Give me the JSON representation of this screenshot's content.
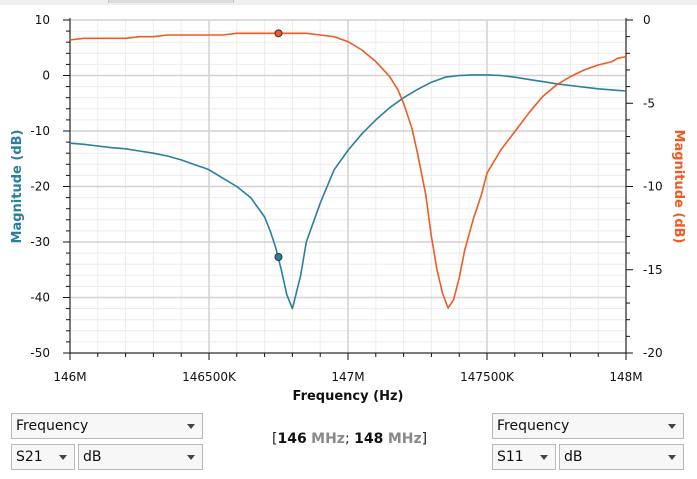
{
  "chart_data": {
    "type": "line",
    "xlabel": "Frequency (Hz)",
    "ylabel_left": "Magnitude (dB)",
    "ylabel_right": "Magnitude (dB)",
    "xlim": [
      146000000,
      148000000
    ],
    "ylim_left": [
      -50,
      10
    ],
    "ylim_right": [
      -20,
      0
    ],
    "x_ticks": [
      146000000,
      146500000,
      147000000,
      147500000,
      148000000
    ],
    "x_tick_labels": [
      "146M",
      "146500K",
      "147M",
      "147500K",
      "148M"
    ],
    "y_ticks_left": [
      10,
      0,
      -10,
      -20,
      -30,
      -40,
      -50
    ],
    "y_tick_labels_left": [
      "10",
      "0",
      "-10",
      "-20",
      "-30",
      "-40",
      "-50"
    ],
    "y_ticks_right": [
      0,
      -5,
      -10,
      -15,
      -20
    ],
    "y_tick_labels_right": [
      "0",
      "-5",
      "-10",
      "-15",
      "-20"
    ],
    "grid": true,
    "series": [
      {
        "axis": "left",
        "color": "#2a7f9e",
        "marker": {
          "x": 146750000,
          "y": -32.7
        },
        "x": [
          146000000,
          146050000,
          146100000,
          146150000,
          146200000,
          146250000,
          146300000,
          146350000,
          146400000,
          146450000,
          146480000,
          146500000,
          146550000,
          146600000,
          146650000,
          146700000,
          146720000,
          146740000,
          146760000,
          146780000,
          146800000,
          146830000,
          146850000,
          146900000,
          146950000,
          147000000,
          147050000,
          147100000,
          147150000,
          147200000,
          147250000,
          147300000,
          147350000,
          147400000,
          147450000,
          147500000,
          147550000,
          147600000,
          147650000,
          147700000,
          147750000,
          147800000,
          147850000,
          147900000,
          147950000,
          148000000
        ],
        "values": [
          -12.2,
          -12.4,
          -12.7,
          -13.0,
          -13.2,
          -13.6,
          -14.0,
          -14.5,
          -15.2,
          -16.1,
          -16.6,
          -17.0,
          -18.5,
          -20.0,
          -22.0,
          -25.5,
          -28.0,
          -31.0,
          -35.0,
          -39.5,
          -42.0,
          -36.0,
          -30.0,
          -23.0,
          -17.0,
          -13.5,
          -10.5,
          -8.0,
          -5.8,
          -4.0,
          -2.5,
          -1.2,
          -0.3,
          0.0,
          0.1,
          0.1,
          0.0,
          -0.3,
          -0.7,
          -1.1,
          -1.5,
          -1.8,
          -2.1,
          -2.4,
          -2.6,
          -2.8
        ]
      },
      {
        "axis": "right",
        "color": "#f05a24",
        "marker": {
          "x": 146750000,
          "y": -0.8
        },
        "x": [
          146000000,
          146050000,
          146100000,
          146150000,
          146200000,
          146250000,
          146300000,
          146350000,
          146400000,
          146450000,
          146500000,
          146550000,
          146600000,
          146650000,
          146700000,
          146750000,
          146800000,
          146850000,
          146900000,
          146950000,
          147000000,
          147050000,
          147100000,
          147150000,
          147180000,
          147200000,
          147230000,
          147250000,
          147280000,
          147300000,
          147320000,
          147340000,
          147360000,
          147380000,
          147400000,
          147420000,
          147450000,
          147480000,
          147500000,
          147550000,
          147600000,
          147650000,
          147700000,
          147750000,
          147800000,
          147850000,
          147900000,
          147950000,
          147970000,
          148000000
        ],
        "values": [
          -1.2,
          -1.1,
          -1.1,
          -1.1,
          -1.1,
          -1.0,
          -1.0,
          -0.9,
          -0.9,
          -0.9,
          -0.9,
          -0.9,
          -0.8,
          -0.8,
          -0.8,
          -0.8,
          -0.8,
          -0.8,
          -0.9,
          -1.0,
          -1.3,
          -1.8,
          -2.5,
          -3.4,
          -4.2,
          -5.0,
          -6.5,
          -8.0,
          -10.5,
          -13.0,
          -15.0,
          -16.4,
          -17.3,
          -16.8,
          -15.5,
          -13.8,
          -12.0,
          -10.5,
          -9.2,
          -7.8,
          -6.7,
          -5.6,
          -4.6,
          -3.9,
          -3.4,
          -3.0,
          -2.7,
          -2.5,
          -2.3,
          -2.2
        ]
      }
    ]
  },
  "center_display": {
    "open": "[",
    "start_value": "146",
    "start_unit": "MHz",
    "separator": ";",
    "stop_value": "148",
    "stop_unit": "MHz",
    "close": "]"
  },
  "left_controls": {
    "axis_select": "Frequency",
    "param_select": "S21",
    "format_select": "dB"
  },
  "right_controls": {
    "axis_select": "Frequency",
    "param_select": "S11",
    "format_select": "dB"
  }
}
